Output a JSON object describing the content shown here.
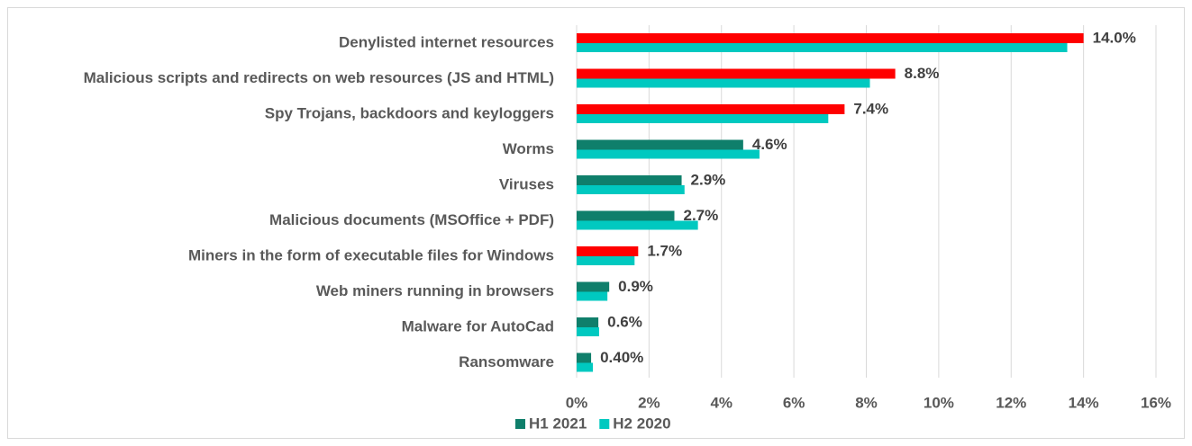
{
  "chart_data": {
    "type": "hbar",
    "categories": [
      "Denylisted internet resources",
      "Malicious scripts and redirects on web resources (JS and HTML)",
      "Spy Trojans, backdoors and keyloggers",
      "Worms",
      "Viruses",
      "Malicious documents (MSOffice + PDF)",
      "Miners in the form of executable files for Windows",
      "Web miners running in browsers",
      "Malware for AutoCad",
      "Ransomware"
    ],
    "series": [
      {
        "name": "H1 2021",
        "color": "#0f7f6b",
        "colors": [
          "#ff0000",
          "#ff0000",
          "#ff0000",
          "#0f7f6b",
          "#0f7f6b",
          "#0f7f6b",
          "#ff0000",
          "#0f7f6b",
          "#0f7f6b",
          "#0f7f6b"
        ],
        "values": [
          14.0,
          8.8,
          7.4,
          4.6,
          2.9,
          2.7,
          1.7,
          0.9,
          0.6,
          0.4
        ],
        "value_labels": [
          "14.0%",
          "8.8%",
          "7.4%",
          "4.6%",
          "2.9%",
          "2.7%",
          "1.7%",
          "0.9%",
          "0.6%",
          "0.40%"
        ]
      },
      {
        "name": "H2 2020",
        "color": "#00c9c0",
        "values": [
          13.55,
          8.1,
          6.95,
          5.05,
          2.98,
          3.35,
          1.6,
          0.85,
          0.62,
          0.45
        ]
      }
    ],
    "xlim": [
      0,
      16
    ],
    "xticks": [
      {
        "value": 0,
        "label": "0%"
      },
      {
        "value": 2,
        "label": "2%"
      },
      {
        "value": 4,
        "label": "4%"
      },
      {
        "value": 6,
        "label": "6%"
      },
      {
        "value": 8,
        "label": "8%"
      },
      {
        "value": 10,
        "label": "10%"
      },
      {
        "value": 12,
        "label": "12%"
      },
      {
        "value": 14,
        "label": "14%"
      },
      {
        "value": 16,
        "label": "16%"
      }
    ],
    "grid": true,
    "legend": "bottom"
  }
}
